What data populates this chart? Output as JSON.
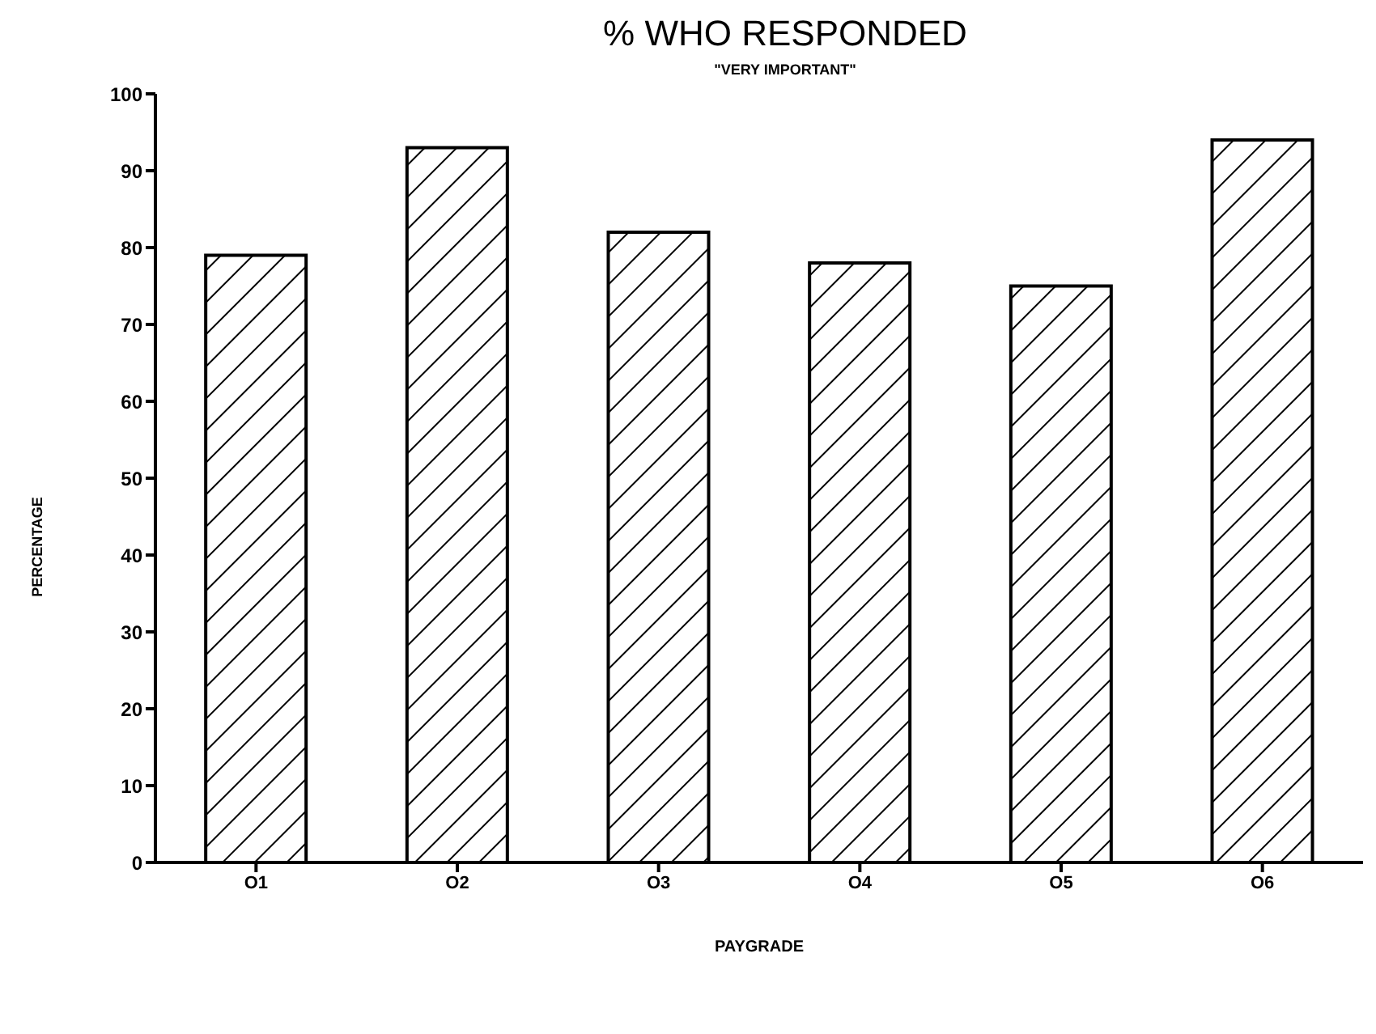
{
  "chart_data": {
    "type": "bar",
    "title": "% WHO RESPONDED",
    "subtitle": "\"VERY IMPORTANT\"",
    "xlabel": "PAYGRADE",
    "ylabel": "PERCENTAGE",
    "categories": [
      "O1",
      "O2",
      "O3",
      "O4",
      "O5",
      "O6"
    ],
    "values": [
      79,
      93,
      82,
      78,
      75,
      94
    ],
    "color": "#000000",
    "ylim": [
      0,
      100
    ],
    "yticks": [
      0,
      10,
      20,
      30,
      40,
      50,
      60,
      70,
      80,
      90,
      100
    ],
    "grid": false,
    "legend": false
  }
}
